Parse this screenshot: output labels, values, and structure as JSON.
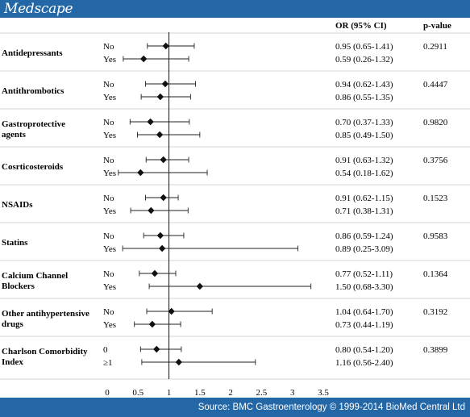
{
  "header": {
    "logo": "Medscape"
  },
  "footer": {
    "source": "Source: BMC Gastroenterology © 1999-2014 BioMed Central Ltd"
  },
  "chart_data": {
    "type": "forest",
    "columns": {
      "or": "OR (95% CI)",
      "p": "p-value"
    },
    "xlim": [
      0,
      3.5
    ],
    "xticks": [
      "0",
      "0.5",
      "1",
      "1.5",
      "2",
      "2.5",
      "3",
      "3.5"
    ],
    "reference_line": 1,
    "groups": [
      {
        "label": [
          "Antidepressants"
        ],
        "p": "0.2911",
        "rows": [
          {
            "label": "No",
            "or": 0.95,
            "lo": 0.65,
            "hi": 1.41,
            "text": "0.95 (0.65-1.41)"
          },
          {
            "label": "Yes",
            "or": 0.59,
            "lo": 0.26,
            "hi": 1.32,
            "text": "0.59 (0.26-1.32)"
          }
        ]
      },
      {
        "label": [
          "Antithrombotics"
        ],
        "p": "0.4447",
        "rows": [
          {
            "label": "No",
            "or": 0.94,
            "lo": 0.62,
            "hi": 1.43,
            "text": "0.94 (0.62-1.43)"
          },
          {
            "label": "Yes",
            "or": 0.86,
            "lo": 0.55,
            "hi": 1.35,
            "text": "0.86 (0.55-1.35)"
          }
        ]
      },
      {
        "label": [
          "Gastroprotective",
          "agents"
        ],
        "p": "0.9820",
        "rows": [
          {
            "label": "No",
            "or": 0.7,
            "lo": 0.37,
            "hi": 1.33,
            "text": "0.70 (0.37-1.33)"
          },
          {
            "label": "Yes",
            "or": 0.85,
            "lo": 0.49,
            "hi": 1.5,
            "text": "0.85 (0.49-1.50)"
          }
        ]
      },
      {
        "label": [
          "Cosrticosteroids"
        ],
        "p": "0.3756",
        "rows": [
          {
            "label": "No",
            "or": 0.91,
            "lo": 0.63,
            "hi": 1.32,
            "text": "0.91 (0.63-1.32)"
          },
          {
            "label": "Yes",
            "or": 0.54,
            "lo": 0.18,
            "hi": 1.62,
            "text": "0.54 (0.18-1.62)"
          }
        ]
      },
      {
        "label": [
          "NSAIDs"
        ],
        "p": "0.1523",
        "rows": [
          {
            "label": "No",
            "or": 0.91,
            "lo": 0.62,
            "hi": 1.15,
            "text": "0.91 (0.62-1.15)"
          },
          {
            "label": "Yes",
            "or": 0.71,
            "lo": 0.38,
            "hi": 1.31,
            "text": "0.71 (0.38-1.31)"
          }
        ]
      },
      {
        "label": [
          "Statins"
        ],
        "p": "0.9583",
        "rows": [
          {
            "label": "No",
            "or": 0.86,
            "lo": 0.59,
            "hi": 1.24,
            "text": "0.86 (0.59-1.24)"
          },
          {
            "label": "Yes",
            "or": 0.89,
            "lo": 0.25,
            "hi": 3.09,
            "text": "0.89 (0.25-3.09)"
          }
        ]
      },
      {
        "label": [
          "Calcium Channel",
          "Blockers"
        ],
        "p": "0.1364",
        "rows": [
          {
            "label": "No",
            "or": 0.77,
            "lo": 0.52,
            "hi": 1.11,
            "text": "0.77 (0.52-1.11)"
          },
          {
            "label": "Yes",
            "or": 1.5,
            "lo": 0.68,
            "hi": 3.3,
            "text": "1.50 (0.68-3.30)"
          }
        ]
      },
      {
        "label": [
          "Other antihypertensive",
          "drugs"
        ],
        "p": "0.3192",
        "rows": [
          {
            "label": "No",
            "or": 1.04,
            "lo": 0.64,
            "hi": 1.7,
            "text": "1.04 (0.64-1.70)"
          },
          {
            "label": "Yes",
            "or": 0.73,
            "lo": 0.44,
            "hi": 1.19,
            "text": "0.73 (0.44-1.19)"
          }
        ]
      },
      {
        "label": [
          "Charlson Comorbidity",
          "Index"
        ],
        "p": "0.3899",
        "rows": [
          {
            "label": "0",
            "or": 0.8,
            "lo": 0.54,
            "hi": 1.2,
            "text": "0.80 (0.54-1.20)"
          },
          {
            "label": "≥1",
            "or": 1.16,
            "lo": 0.56,
            "hi": 2.4,
            "text": "1.16 (0.56-2.40)"
          }
        ]
      }
    ]
  }
}
